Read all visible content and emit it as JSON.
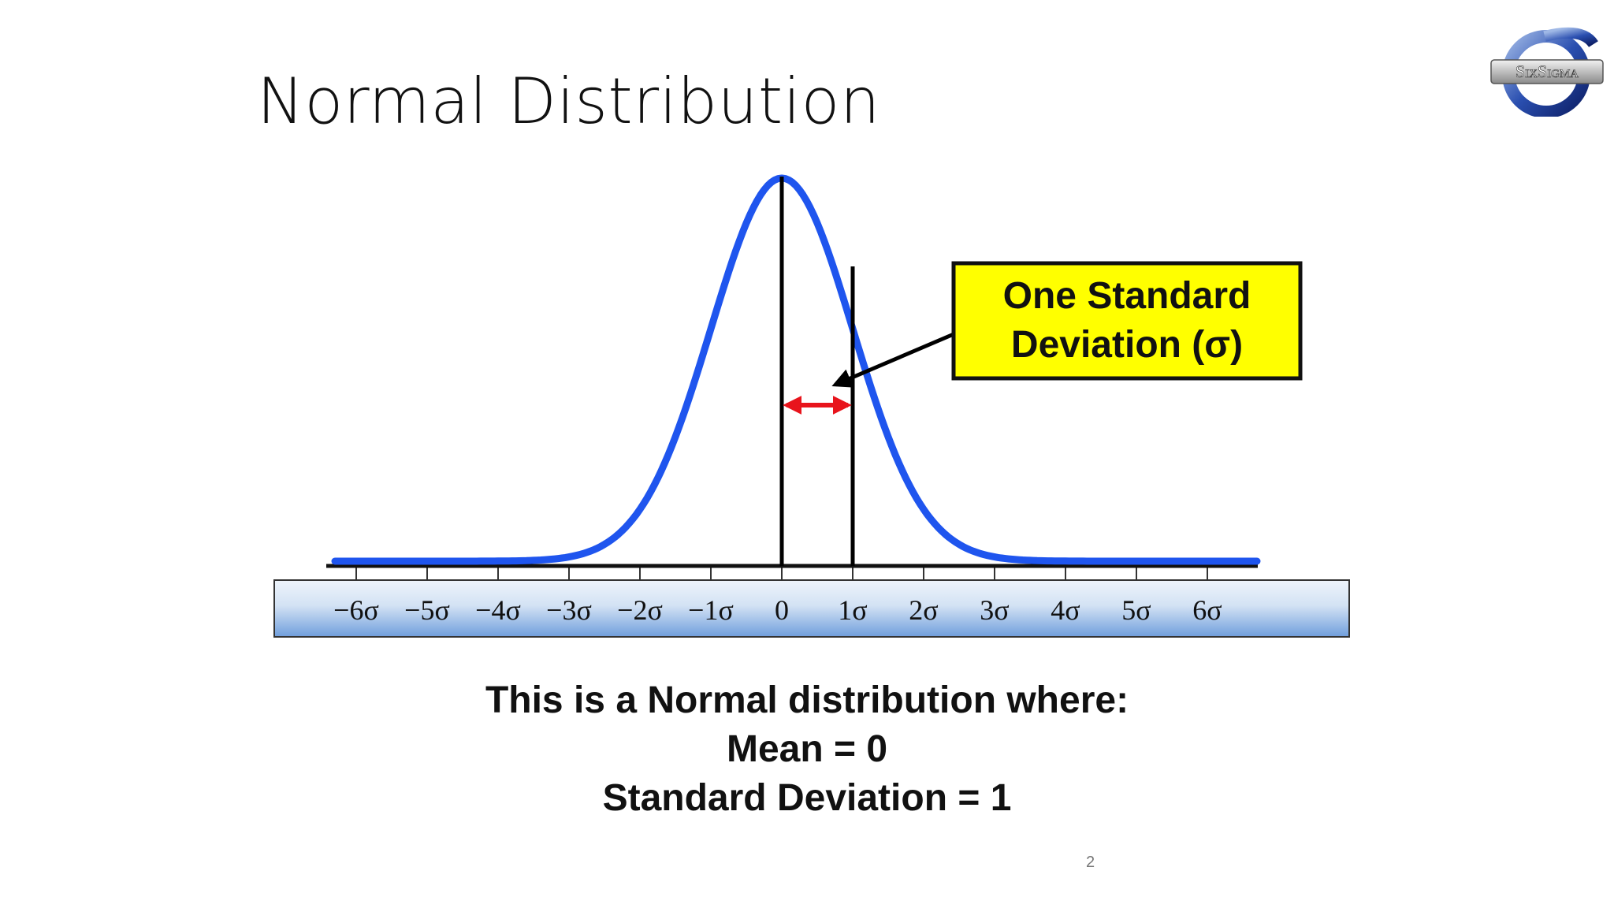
{
  "slide": {
    "title": "Normal Distribution",
    "page_number": "2"
  },
  "logo": {
    "text": "SixSigma",
    "icon": "sigma-logo-icon"
  },
  "caption": {
    "line1": "This is a Normal distribution where:",
    "line2": "Mean = 0",
    "line3": "Standard Deviation = 1"
  },
  "chart_data": {
    "type": "line",
    "title": "",
    "xlabel": "",
    "ylabel": "",
    "distribution": "normal",
    "mean": 0,
    "std_dev": 1,
    "xlim": [
      -7,
      7
    ],
    "tick_positions": [
      -6,
      -5,
      -4,
      -3,
      -2,
      -1,
      0,
      1,
      2,
      3,
      4,
      5,
      6
    ],
    "tick_labels": [
      "−6σ",
      "−5σ",
      "−4σ",
      "−3σ",
      "−2σ",
      "−1σ",
      "0",
      "1σ",
      "2σ",
      "3σ",
      "4σ",
      "5σ",
      "6σ"
    ],
    "reference_lines": [
      0,
      1
    ],
    "interval_arrow": [
      0,
      1
    ],
    "annotation": {
      "line1": "One Standard",
      "line2": "Deviation (σ)",
      "fill": "#ffff00"
    },
    "colors": {
      "curve": "#1f55ee",
      "arrow": "#e8141c",
      "axis_band_top": "#eef4fb",
      "axis_band_bottom": "#6f9edc"
    },
    "grid": false,
    "legend": "none"
  }
}
